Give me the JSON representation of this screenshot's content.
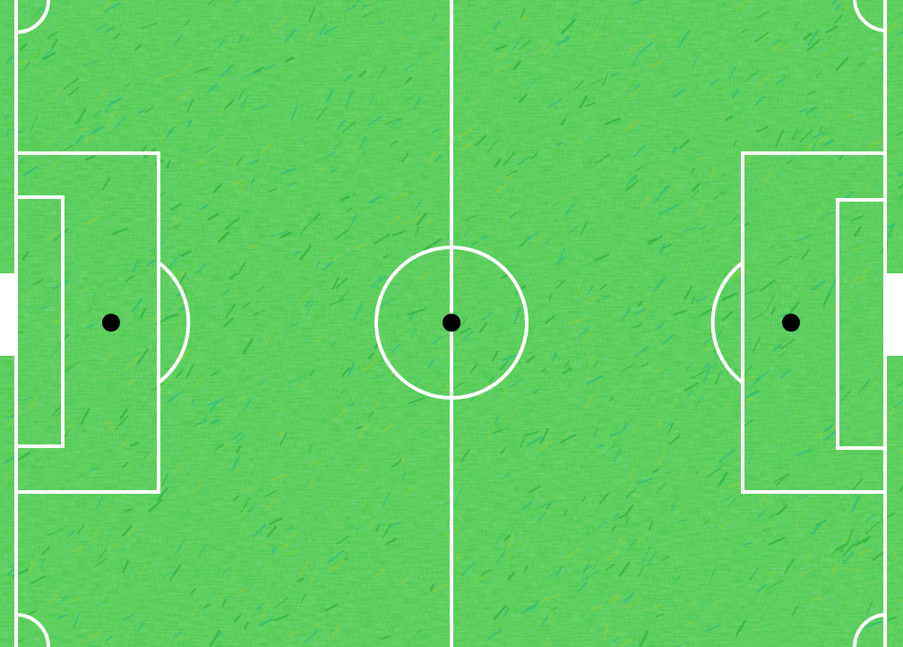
{
  "pitch": {
    "colors": {
      "grass_base": "#2fbf3e",
      "grass_light": "#4fd35a",
      "grass_dark": "#1fa83a",
      "grass_yellow": "#8fd12f",
      "grass_teal": "#22b88a",
      "lines": "#ffffff",
      "spots": "#000000",
      "goal_mouth": "#ffffff"
    },
    "elements": [
      "outer-boundary",
      "halfway-line",
      "center-circle",
      "center-spot",
      "left-penalty-area",
      "left-goal-area",
      "left-penalty-spot",
      "left-penalty-arc",
      "right-penalty-area",
      "right-goal-area",
      "right-penalty-spot",
      "right-penalty-arc",
      "corner-arcs",
      "left-goal",
      "right-goal"
    ]
  }
}
